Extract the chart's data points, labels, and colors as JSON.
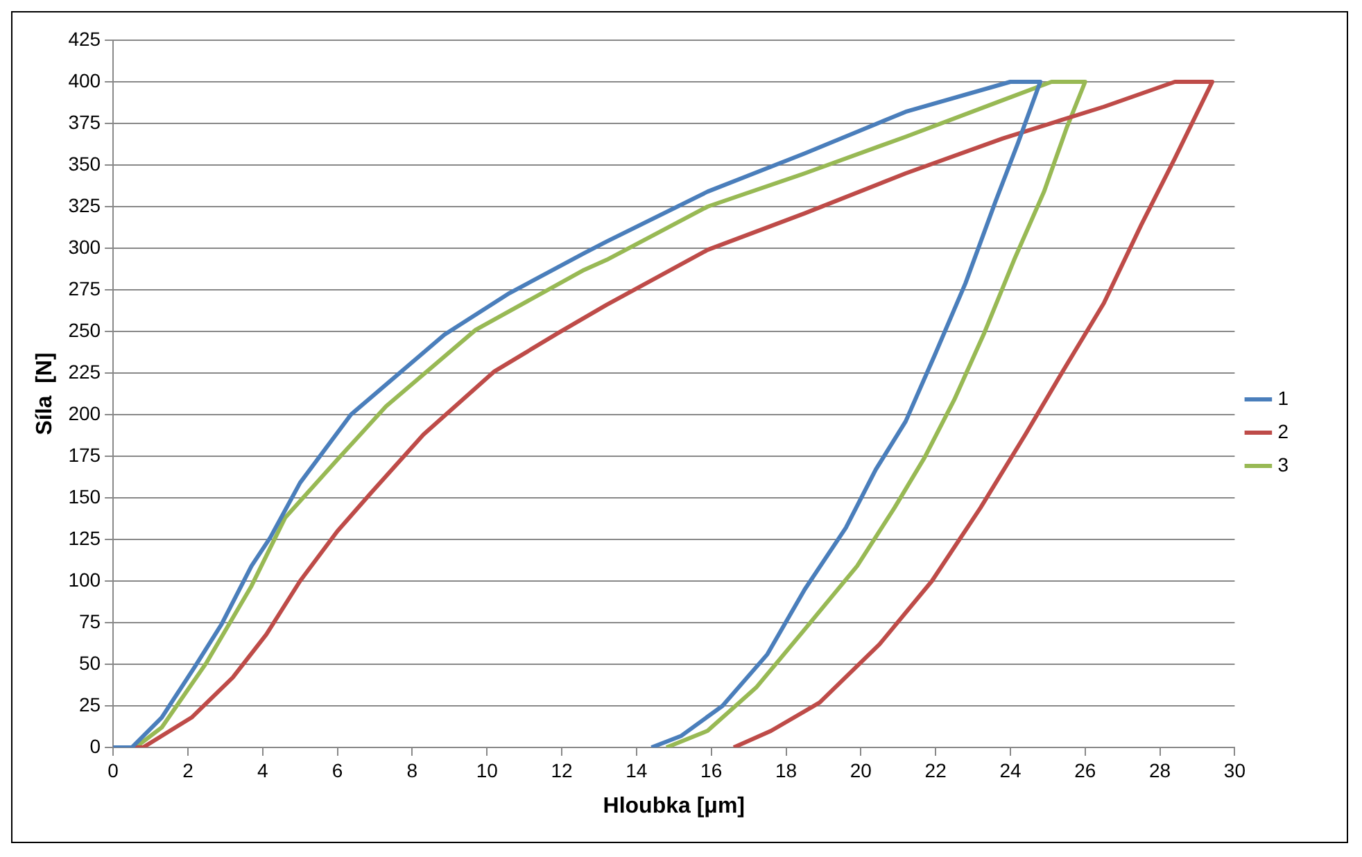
{
  "chart_data": {
    "type": "line",
    "xlabel": "Hloubka [μm]",
    "ylabel": "Síla  [N]",
    "xlim": [
      0,
      30
    ],
    "xticks": [
      0,
      2,
      4,
      6,
      8,
      10,
      12,
      14,
      16,
      18,
      20,
      22,
      24,
      26,
      28,
      30
    ],
    "ylim": [
      0,
      425
    ],
    "yticks": [
      0,
      25,
      50,
      75,
      100,
      125,
      150,
      175,
      200,
      225,
      250,
      275,
      300,
      325,
      350,
      375,
      400,
      425
    ],
    "grid": "y",
    "legend": "right",
    "marker": "none",
    "line_style": "solid",
    "series": [
      {
        "name": "1",
        "color": "#4a7ebb",
        "x": [
          0,
          0.5,
          1.3,
          2.2,
          2.9,
          3.7,
          4.2,
          5.0,
          6.36,
          8.86,
          10.6,
          12.6,
          13.2,
          15.9,
          18.5,
          21.2,
          24.0,
          24.8,
          24.2,
          23.6,
          22.8,
          22.0,
          21.2,
          20.4,
          19.6,
          18.5,
          17.5,
          16.3,
          15.2,
          14.4
        ],
        "values": [
          0,
          0,
          18,
          49,
          74,
          109,
          126,
          159,
          200,
          248,
          273,
          297,
          304,
          334,
          357,
          382,
          400,
          400,
          363,
          328,
          279,
          237,
          196,
          167,
          132,
          95,
          56,
          25,
          7,
          0
        ]
      },
      {
        "name": "2",
        "color": "#be4b48",
        "x": [
          0,
          0.8,
          2.1,
          3.2,
          4.1,
          5.0,
          6.0,
          6.9,
          8.3,
          10.2,
          11.9,
          13.2,
          15.9,
          18.5,
          21.2,
          23.8,
          26.5,
          28.4,
          29.4,
          28.4,
          27.5,
          26.5,
          25.4,
          24.4,
          23.2,
          21.9,
          20.5,
          18.9,
          17.6,
          16.6
        ],
        "values": [
          0,
          0,
          18,
          42,
          68,
          100,
          130,
          153,
          188,
          226,
          249,
          266,
          299,
          321,
          345,
          366,
          385,
          400,
          400,
          354,
          314,
          267,
          226,
          188,
          144,
          100,
          62,
          27,
          10,
          0
        ]
      },
      {
        "name": "3",
        "color": "#98b954",
        "x": [
          0,
          0.6,
          1.3,
          2.5,
          3.7,
          4.6,
          6.0,
          7.3,
          9.7,
          12.6,
          13.2,
          15.9,
          18.5,
          21.2,
          23.8,
          25.1,
          26.0,
          25.5,
          24.9,
          24.1,
          23.3,
          22.5,
          21.7,
          20.9,
          19.9,
          18.5,
          17.2,
          15.9,
          14.8
        ],
        "values": [
          0,
          0,
          12,
          51,
          97,
          138,
          173,
          205,
          251,
          287,
          293,
          325,
          345,
          367,
          389,
          400,
          400,
          372,
          334,
          293,
          249,
          209,
          174,
          144,
          109,
          71,
          36,
          10,
          0
        ]
      }
    ]
  }
}
